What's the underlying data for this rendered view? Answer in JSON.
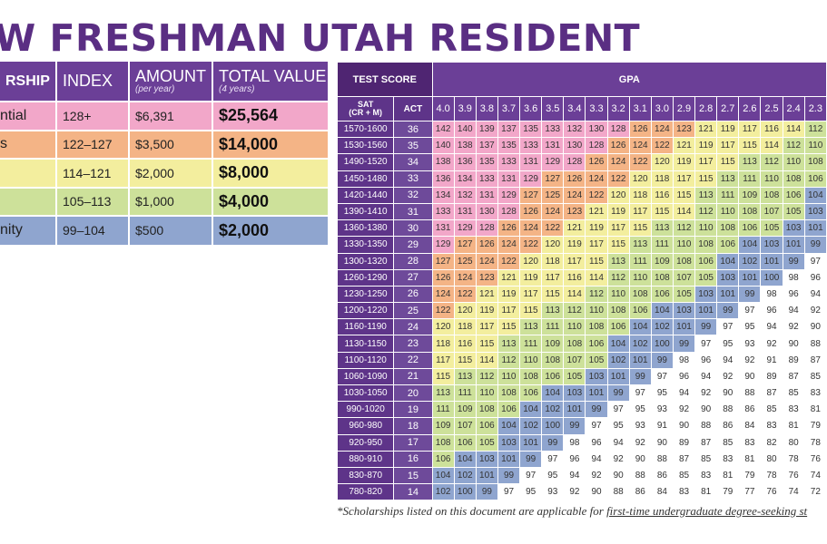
{
  "title": "W FRESHMAN UTAH RESIDENT",
  "scholarship_table": {
    "headers": [
      {
        "label": "RSHIP",
        "sub": ""
      },
      {
        "label": "INDEX",
        "sub": ""
      },
      {
        "label": "AMOUNT",
        "sub": "(per year)"
      },
      {
        "label": "TOTAL VALUE",
        "sub": "(4 years)"
      }
    ],
    "rows": [
      {
        "name": "ntial",
        "index": "128+",
        "amount": "$6,391",
        "total": "$25,564",
        "color": "#f2a7c9"
      },
      {
        "name": "s",
        "index": "122–127",
        "amount": "$3,500",
        "total": "$14,000",
        "color": "#f4b486"
      },
      {
        "name": "",
        "index": "114–121",
        "amount": "$2,000",
        "total": "$8,000",
        "color": "#f3ee9e"
      },
      {
        "name": "",
        "index": "105–113",
        "amount": "$1,000",
        "total": "$4,000",
        "color": "#cde19a"
      },
      {
        "name": "nity",
        "index": "99–104",
        "amount": "$500",
        "total": "$2,000",
        "color": "#8fa5cf"
      }
    ]
  },
  "grid": {
    "test_score_header": "TEST SCORE",
    "gpa_header": "GPA",
    "sat_header": "SAT (CR + M)",
    "act_header": "ACT",
    "gpas": [
      "4.0",
      "3.9",
      "3.8",
      "3.7",
      "3.6",
      "3.5",
      "3.4",
      "3.3",
      "3.2",
      "3.1",
      "3.0",
      "2.9",
      "2.8",
      "2.7",
      "2.6",
      "2.5",
      "2.4",
      "2.3"
    ],
    "rows": [
      {
        "sat": "1570-1600",
        "act": "36",
        "values": [
          142,
          140,
          139,
          137,
          135,
          133,
          132,
          130,
          128,
          126,
          124,
          123,
          121,
          119,
          117,
          116,
          114,
          112
        ]
      },
      {
        "sat": "1530-1560",
        "act": "35",
        "values": [
          140,
          138,
          137,
          135,
          133,
          131,
          130,
          128,
          126,
          124,
          122,
          121,
          119,
          117,
          115,
          114,
          112,
          110
        ]
      },
      {
        "sat": "1490-1520",
        "act": "34",
        "values": [
          138,
          136,
          135,
          133,
          131,
          129,
          128,
          126,
          124,
          122,
          120,
          119,
          117,
          115,
          113,
          112,
          110,
          108
        ]
      },
      {
        "sat": "1450-1480",
        "act": "33",
        "values": [
          136,
          134,
          133,
          131,
          129,
          127,
          126,
          124,
          122,
          120,
          118,
          117,
          115,
          113,
          111,
          110,
          108,
          106
        ]
      },
      {
        "sat": "1420-1440",
        "act": "32",
        "values": [
          134,
          132,
          131,
          129,
          127,
          125,
          124,
          122,
          120,
          118,
          116,
          115,
          113,
          111,
          109,
          108,
          106,
          104
        ]
      },
      {
        "sat": "1390-1410",
        "act": "31",
        "values": [
          133,
          131,
          130,
          128,
          126,
          124,
          123,
          121,
          119,
          117,
          115,
          114,
          112,
          110,
          108,
          107,
          105,
          103
        ]
      },
      {
        "sat": "1360-1380",
        "act": "30",
        "values": [
          131,
          129,
          128,
          126,
          124,
          122,
          121,
          119,
          117,
          115,
          113,
          112,
          110,
          108,
          106,
          105,
          103,
          101
        ]
      },
      {
        "sat": "1330-1350",
        "act": "29",
        "values": [
          129,
          127,
          126,
          124,
          122,
          120,
          119,
          117,
          115,
          113,
          111,
          110,
          108,
          106,
          104,
          103,
          101,
          99
        ]
      },
      {
        "sat": "1300-1320",
        "act": "28",
        "values": [
          127,
          125,
          124,
          122,
          120,
          118,
          117,
          115,
          113,
          111,
          109,
          108,
          106,
          104,
          102,
          101,
          99,
          97
        ]
      },
      {
        "sat": "1260-1290",
        "act": "27",
        "values": [
          126,
          124,
          123,
          121,
          119,
          117,
          116,
          114,
          112,
          110,
          108,
          107,
          105,
          103,
          101,
          100,
          98,
          96
        ]
      },
      {
        "sat": "1230-1250",
        "act": "26",
        "values": [
          124,
          122,
          121,
          119,
          117,
          115,
          114,
          112,
          110,
          108,
          106,
          105,
          103,
          101,
          99,
          98,
          96,
          94
        ]
      },
      {
        "sat": "1200-1220",
        "act": "25",
        "values": [
          122,
          120,
          119,
          117,
          115,
          113,
          112,
          110,
          108,
          106,
          104,
          103,
          101,
          99,
          97,
          96,
          94,
          92
        ]
      },
      {
        "sat": "1160-1190",
        "act": "24",
        "values": [
          120,
          118,
          117,
          115,
          113,
          111,
          110,
          108,
          106,
          104,
          102,
          101,
          99,
          97,
          95,
          94,
          92,
          90
        ]
      },
      {
        "sat": "1130-1150",
        "act": "23",
        "values": [
          118,
          116,
          115,
          113,
          111,
          109,
          108,
          106,
          104,
          102,
          100,
          99,
          97,
          95,
          93,
          92,
          90,
          88
        ]
      },
      {
        "sat": "1100-1120",
        "act": "22",
        "values": [
          117,
          115,
          114,
          112,
          110,
          108,
          107,
          105,
          102,
          101,
          99,
          98,
          96,
          94,
          92,
          91,
          89,
          87
        ]
      },
      {
        "sat": "1060-1090",
        "act": "21",
        "values": [
          115,
          113,
          112,
          110,
          108,
          106,
          105,
          103,
          101,
          99,
          97,
          96,
          94,
          92,
          90,
          89,
          87,
          85
        ]
      },
      {
        "sat": "1030-1050",
        "act": "20",
        "values": [
          113,
          111,
          110,
          108,
          106,
          104,
          103,
          101,
          99,
          97,
          95,
          94,
          92,
          90,
          88,
          87,
          85,
          83
        ]
      },
      {
        "sat": "990-1020",
        "act": "19",
        "values": [
          111,
          109,
          108,
          106,
          104,
          102,
          101,
          99,
          97,
          95,
          93,
          92,
          90,
          88,
          86,
          85,
          83,
          81
        ]
      },
      {
        "sat": "960-980",
        "act": "18",
        "values": [
          109,
          107,
          106,
          104,
          102,
          100,
          99,
          97,
          95,
          93,
          91,
          90,
          88,
          86,
          84,
          83,
          81,
          79
        ]
      },
      {
        "sat": "920-950",
        "act": "17",
        "values": [
          108,
          106,
          105,
          103,
          101,
          99,
          98,
          96,
          94,
          92,
          90,
          89,
          87,
          85,
          83,
          82,
          80,
          78
        ]
      },
      {
        "sat": "880-910",
        "act": "16",
        "values": [
          106,
          104,
          103,
          101,
          99,
          97,
          96,
          94,
          92,
          90,
          88,
          87,
          85,
          83,
          81,
          80,
          78,
          76
        ]
      },
      {
        "sat": "830-870",
        "act": "15",
        "values": [
          104,
          102,
          101,
          99,
          97,
          95,
          94,
          92,
          90,
          88,
          86,
          85,
          83,
          81,
          79,
          78,
          76,
          74
        ]
      },
      {
        "sat": "780-820",
        "act": "14",
        "values": [
          102,
          100,
          99,
          97,
          95,
          93,
          92,
          90,
          88,
          86,
          84,
          83,
          81,
          79,
          77,
          76,
          74,
          72
        ]
      }
    ],
    "tiers": [
      {
        "min": 128,
        "color": "#f2a7c9"
      },
      {
        "min": 122,
        "color": "#f4b486"
      },
      {
        "min": 114,
        "color": "#f3ee9e"
      },
      {
        "min": 105,
        "color": "#cde19a"
      },
      {
        "min": 99,
        "color": "#8fa5cf"
      }
    ],
    "below_color": "#ffffff"
  },
  "footnote": {
    "prefix": "*Scholarships listed on this document are applicable for ",
    "underlined": "first-time undergraduate degree-seeking st"
  }
}
